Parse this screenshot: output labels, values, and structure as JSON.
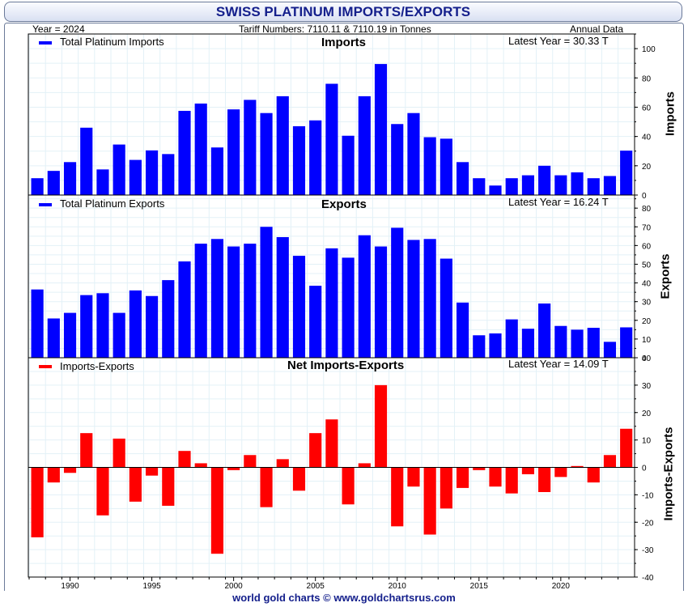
{
  "header": {
    "title": "SWISS PLATINUM IMPORTS/EXPORTS",
    "year": "Year = 2024",
    "tariff": "Tariff Numbers: 7110.11 & 7110.19 in Tonnes",
    "annual": "Annual Data"
  },
  "footer": "world gold charts © www.goldchartsrus.com",
  "colors": {
    "imports": "#0000ff",
    "exports": "#0000ff",
    "net": "#ff0000",
    "title": "#15208c"
  },
  "panels": {
    "imports": {
      "legend": "Total Platinum Imports",
      "title": "Imports",
      "latest": "Latest Year = 30.33 T",
      "ylabel": "Imports"
    },
    "exports": {
      "legend": "Total Platinum Exports",
      "title": "Exports",
      "latest": "Latest Year = 16.24 T",
      "ylabel": "Exports"
    },
    "net": {
      "legend": "Imports-Exports",
      "title": "Net Imports-Exports",
      "latest": "Latest Year = 14.09 T",
      "ylabel": "Imports-Exports"
    }
  },
  "chart_data": [
    {
      "type": "bar",
      "title": "Imports",
      "ylabel": "Imports",
      "series": [
        {
          "name": "Total Platinum Imports",
          "values": [
            11.5,
            16.5,
            22.5,
            46,
            17.5,
            34.5,
            24,
            30.5,
            28,
            57.5,
            62.5,
            32.5,
            58.5,
            65,
            56,
            67.5,
            47,
            51,
            76,
            40.5,
            67.5,
            89.5,
            48.5,
            56,
            39.5,
            38.5,
            22.5,
            11.5,
            6.5,
            11.5,
            13.5,
            20,
            13.5,
            15.5,
            11.5,
            13,
            30.33
          ]
        }
      ],
      "x": [
        1988,
        1989,
        1990,
        1991,
        1992,
        1993,
        1994,
        1995,
        1996,
        1997,
        1998,
        1999,
        2000,
        2001,
        2002,
        2003,
        2004,
        2005,
        2006,
        2007,
        2008,
        2009,
        2010,
        2011,
        2012,
        2013,
        2014,
        2015,
        2016,
        2017,
        2018,
        2019,
        2020,
        2021,
        2022,
        2023,
        2024
      ],
      "ylim": [
        0,
        110
      ],
      "yticks": [
        0,
        20,
        40,
        60,
        80,
        100
      ],
      "grid": true,
      "legend": "top-left"
    },
    {
      "type": "bar",
      "title": "Exports",
      "ylabel": "Exports",
      "series": [
        {
          "name": "Total Platinum Exports",
          "values": [
            36.5,
            21,
            24,
            33.5,
            34.5,
            24,
            36,
            33,
            41.5,
            51.5,
            61,
            63.5,
            59.5,
            61,
            70,
            64.5,
            54.5,
            38.5,
            58.5,
            53.5,
            65.5,
            59.5,
            69.5,
            63,
            63.5,
            53,
            29.5,
            12,
            13,
            20.5,
            15.5,
            29,
            17,
            15,
            16,
            8.5,
            16.24
          ]
        }
      ],
      "x": [
        1988,
        1989,
        1990,
        1991,
        1992,
        1993,
        1994,
        1995,
        1996,
        1997,
        1998,
        1999,
        2000,
        2001,
        2002,
        2003,
        2004,
        2005,
        2006,
        2007,
        2008,
        2009,
        2010,
        2011,
        2012,
        2013,
        2014,
        2015,
        2016,
        2017,
        2018,
        2019,
        2020,
        2021,
        2022,
        2023,
        2024
      ],
      "ylim": [
        0,
        87
      ],
      "yticks": [
        0,
        10,
        20,
        30,
        40,
        50,
        60,
        70,
        80
      ],
      "grid": true,
      "legend": "top-left"
    },
    {
      "type": "bar",
      "title": "Net Imports-Exports",
      "ylabel": "Imports-Exports",
      "series": [
        {
          "name": "Imports-Exports",
          "values": [
            -25.5,
            -5.5,
            -2,
            12.5,
            -17.5,
            10.5,
            -12.5,
            -3,
            -14,
            6,
            1.5,
            -31.5,
            -1,
            4.5,
            -14.5,
            3,
            -8.5,
            12.5,
            17.5,
            -13.5,
            1.5,
            30,
            -21.5,
            -7,
            -24.5,
            -15,
            -7.5,
            -1,
            -7,
            -9.5,
            -2.5,
            -9,
            -3.5,
            0.5,
            -5.5,
            4.5,
            14.09
          ]
        }
      ],
      "x": [
        1988,
        1989,
        1990,
        1991,
        1992,
        1993,
        1994,
        1995,
        1996,
        1997,
        1998,
        1999,
        2000,
        2001,
        2002,
        2003,
        2004,
        2005,
        2006,
        2007,
        2008,
        2009,
        2010,
        2011,
        2012,
        2013,
        2014,
        2015,
        2016,
        2017,
        2018,
        2019,
        2020,
        2021,
        2022,
        2023,
        2024
      ],
      "xticks": [
        1990,
        1995,
        2000,
        2005,
        2010,
        2015,
        2020
      ],
      "ylim": [
        -40,
        40
      ],
      "yticks": [
        -40,
        -30,
        -20,
        -10,
        0,
        10,
        20,
        30,
        40
      ],
      "grid": true,
      "legend": "top-left"
    }
  ]
}
